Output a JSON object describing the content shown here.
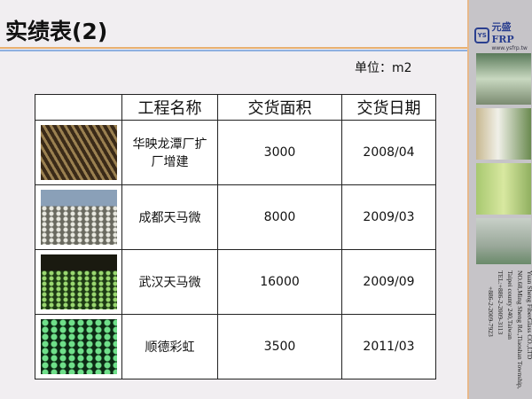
{
  "slide": {
    "title": "实绩表(2)",
    "unit": "单位：m2"
  },
  "table": {
    "headers": [
      "",
      "工程名称",
      "交货面积",
      "交货日期"
    ],
    "rows": [
      {
        "name": "华映龙潭厂扩厂增建",
        "area": "3000",
        "date": "2008/04"
      },
      {
        "name": "成都天马微",
        "area": "8000",
        "date": "2009/03"
      },
      {
        "name": "武汉天马微",
        "area": "16000",
        "date": "2009/09"
      },
      {
        "name": "顺德彩虹",
        "area": "3500",
        "date": "2011/03"
      }
    ]
  },
  "sidebar": {
    "logo_mark": "YS",
    "logo_name": "元盛FRP",
    "logo_url": "www.ysfrp.tw",
    "address": [
      "Yuan Sheng FiberGlass CO.,LTD",
      "NO.68,Ming Sheng Rd.,Tiaoshan Township,",
      "Taipei county 240,Taiwan",
      "TEL:+886-2-2009-3113",
      "+886-2-2009-7923"
    ]
  },
  "colors": {
    "accent_orange": "#e8b070",
    "accent_blue": "#8fb0e0",
    "logo_blue": "#2a3f8f"
  }
}
